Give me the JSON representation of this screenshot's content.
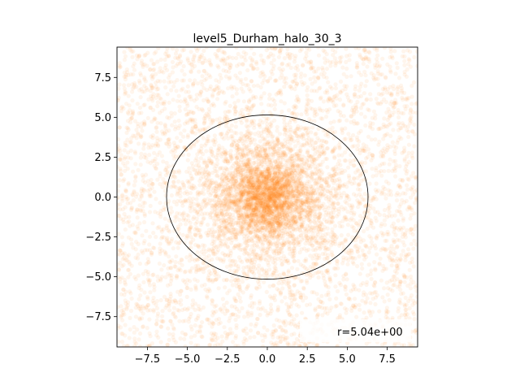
{
  "chart_data": {
    "type": "scatter",
    "title": "level5_Durham_halo_30_3",
    "xlim": [
      -9.4,
      9.4
    ],
    "ylim": [
      -9.4,
      9.4
    ],
    "xticks": [
      -7.5,
      -5.0,
      -2.5,
      0.0,
      2.5,
      5.0,
      7.5
    ],
    "yticks": [
      -7.5,
      -5.0,
      -2.5,
      0.0,
      2.5,
      5.0,
      7.5
    ],
    "xtick_labels": [
      "−7.5",
      "−5.0",
      "−2.5",
      "0.0",
      "2.5",
      "5.0",
      "7.5"
    ],
    "ytick_labels": [
      "−7.5",
      "−5.0",
      "−2.5",
      "0.0",
      "2.5",
      "5.0",
      "7.5"
    ],
    "grid": false,
    "series": [
      {
        "color": "#ff7f0e",
        "marker_alpha": 0.08,
        "distribution": "dense particle cloud centered near (0, 0), density decreasing outward",
        "center": [
          0.0,
          0.0
        ]
      }
    ],
    "annotations": [
      {
        "type": "ellipse",
        "center": [
          0.0,
          0.0
        ],
        "width": 12.6,
        "height": 10.3,
        "color": "#000000"
      }
    ],
    "legend": {
      "placement": "lower-right",
      "label": "r=5.04e+00"
    }
  }
}
